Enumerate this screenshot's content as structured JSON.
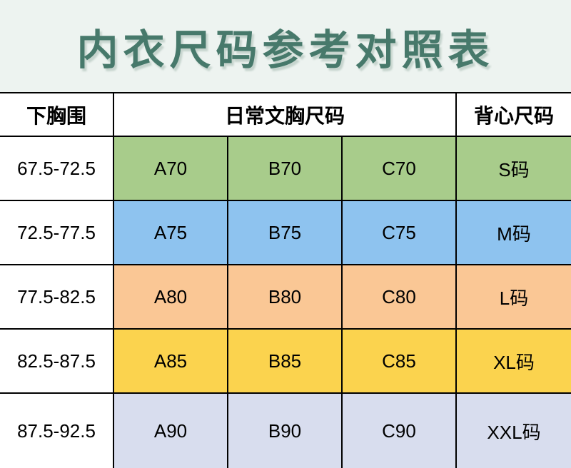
{
  "page": {
    "title": "内衣尺码参考对照表"
  },
  "colors": {
    "page_background": "#edf3f0",
    "title_color": "#47796b",
    "table_border": "#000000",
    "header_background": "#ffffff",
    "row_backgrounds": [
      "#a8cc8b",
      "#8ec3ef",
      "#fac795",
      "#fbd34e",
      "#d8ddee"
    ]
  },
  "table": {
    "headers": {
      "underbust": "下胸围",
      "daily_bra": "日常文胸尺码",
      "vest": "背心尺码"
    },
    "rows": [
      {
        "range": "67.5-72.5",
        "a": "A70",
        "b": "B70",
        "c": "C70",
        "vest": "S码",
        "color": "#a8cc8b"
      },
      {
        "range": "72.5-77.5",
        "a": "A75",
        "b": "B75",
        "c": "C75",
        "vest": "M码",
        "color": "#8ec3ef"
      },
      {
        "range": "77.5-82.5",
        "a": "A80",
        "b": "B80",
        "c": "C80",
        "vest": "L码",
        "color": "#fac795"
      },
      {
        "range": "82.5-87.5",
        "a": "A85",
        "b": "B85",
        "c": "C85",
        "vest": "XL码",
        "color": "#fbd34e"
      },
      {
        "range": "87.5-92.5",
        "a": "A90",
        "b": "B90",
        "c": "C90",
        "vest": "XXL码",
        "color": "#d8ddee"
      }
    ]
  }
}
